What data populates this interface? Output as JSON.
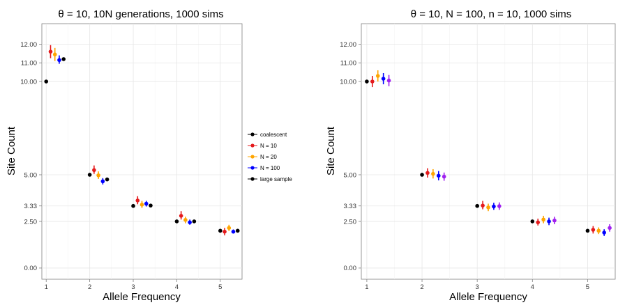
{
  "legend": {
    "entries": [
      {
        "label": "coalescent",
        "color": "#000000"
      },
      {
        "label": "N = 10",
        "color": "#e41a1c"
      },
      {
        "label": "N = 20",
        "color": "#ffa500"
      },
      {
        "label": "N = 100",
        "color": "#0000ff"
      },
      {
        "label": "large sample",
        "color": "#000000"
      }
    ]
  },
  "chart_data": [
    {
      "type": "scatter",
      "title": "θ = 10, 10N generations, 1000 sims",
      "xlabel": "Allele Frequency",
      "ylabel": "Site Count",
      "xlim": [
        0.9,
        5.5
      ],
      "ylim": [
        -0.6,
        13.1
      ],
      "x_ticks": [
        1,
        2,
        3,
        4,
        5
      ],
      "y_ticks": [
        0,
        2.5,
        3.33,
        5,
        10,
        11,
        12
      ],
      "y_tick_labels": [
        "0.00",
        "2.50",
        "3.33",
        "5.00",
        "10.00",
        "11.00",
        "12.00"
      ],
      "grid": true,
      "series": [
        {
          "name": "coalescent",
          "color": "#000000",
          "offset": 0,
          "points": [
            {
              "x": 1,
              "y": 10.0,
              "lo": 10.0,
              "hi": 10.0
            },
            {
              "x": 2,
              "y": 5.0,
              "lo": 5.0,
              "hi": 5.0
            },
            {
              "x": 3,
              "y": 3.33,
              "lo": 3.33,
              "hi": 3.33
            },
            {
              "x": 4,
              "y": 2.5,
              "lo": 2.5,
              "hi": 2.5
            },
            {
              "x": 5,
              "y": 2.0,
              "lo": 2.0,
              "hi": 2.0
            }
          ]
        },
        {
          "name": "N = 10",
          "color": "#e41a1c",
          "offset": 0.1,
          "points": [
            {
              "x": 1,
              "y": 11.6,
              "lo": 11.25,
              "hi": 11.95
            },
            {
              "x": 2,
              "y": 5.25,
              "lo": 5.05,
              "hi": 5.5
            },
            {
              "x": 3,
              "y": 3.62,
              "lo": 3.42,
              "hi": 3.85
            },
            {
              "x": 4,
              "y": 2.8,
              "lo": 2.6,
              "hi": 3.05
            },
            {
              "x": 5,
              "y": 1.95,
              "lo": 1.75,
              "hi": 2.15
            }
          ]
        },
        {
          "name": "N = 20",
          "color": "#ffa500",
          "offset": 0.2,
          "points": [
            {
              "x": 1,
              "y": 11.45,
              "lo": 11.1,
              "hi": 11.8
            },
            {
              "x": 2,
              "y": 4.97,
              "lo": 4.78,
              "hi": 5.18
            },
            {
              "x": 3,
              "y": 3.4,
              "lo": 3.22,
              "hi": 3.6
            },
            {
              "x": 4,
              "y": 2.58,
              "lo": 2.4,
              "hi": 2.75
            },
            {
              "x": 5,
              "y": 2.15,
              "lo": 1.98,
              "hi": 2.32
            }
          ]
        },
        {
          "name": "N = 100",
          "color": "#0000ff",
          "offset": 0.3,
          "points": [
            {
              "x": 1,
              "y": 11.15,
              "lo": 10.95,
              "hi": 11.4
            },
            {
              "x": 2,
              "y": 4.65,
              "lo": 4.48,
              "hi": 4.82
            },
            {
              "x": 3,
              "y": 3.45,
              "lo": 3.3,
              "hi": 3.6
            },
            {
              "x": 4,
              "y": 2.45,
              "lo": 2.32,
              "hi": 2.6
            },
            {
              "x": 5,
              "y": 1.95,
              "lo": 1.85,
              "hi": 2.07
            }
          ]
        },
        {
          "name": "large sample",
          "color": "#000000",
          "offset": 0.4,
          "points": [
            {
              "x": 1,
              "y": 11.2,
              "lo": 11.2,
              "hi": 11.2
            },
            {
              "x": 2,
              "y": 4.75,
              "lo": 4.75,
              "hi": 4.75
            },
            {
              "x": 3,
              "y": 3.35,
              "lo": 3.35,
              "hi": 3.35
            },
            {
              "x": 4,
              "y": 2.5,
              "lo": 2.5,
              "hi": 2.5
            },
            {
              "x": 5,
              "y": 2.0,
              "lo": 2.0,
              "hi": 2.0
            }
          ]
        }
      ]
    },
    {
      "type": "scatter",
      "title": "θ = 10, N = 100, n = 10, 1000 sims",
      "xlabel": "Allele Frequency",
      "ylabel": "Site Count",
      "xlim": [
        0.9,
        5.5
      ],
      "ylim": [
        -0.6,
        13.1
      ],
      "x_ticks": [
        1,
        2,
        3,
        4,
        5
      ],
      "y_ticks": [
        0,
        2.5,
        3.33,
        5,
        10,
        11,
        12
      ],
      "y_tick_labels": [
        "0.00",
        "2.50",
        "3.33",
        "5.00",
        "10.00",
        "11.00",
        "12.00"
      ],
      "grid": true,
      "series": [
        {
          "color": "#000000",
          "offset": 0,
          "points": [
            {
              "x": 1,
              "y": 10.0,
              "lo": 10.0,
              "hi": 10.0
            },
            {
              "x": 2,
              "y": 5.0,
              "lo": 5.0,
              "hi": 5.0
            },
            {
              "x": 3,
              "y": 3.33,
              "lo": 3.33,
              "hi": 3.33
            },
            {
              "x": 4,
              "y": 2.5,
              "lo": 2.5,
              "hi": 2.5
            },
            {
              "x": 5,
              "y": 2.0,
              "lo": 2.0,
              "hi": 2.0
            }
          ]
        },
        {
          "color": "#e41a1c",
          "offset": 0.1,
          "points": [
            {
              "x": 1,
              "y": 10.0,
              "lo": 9.7,
              "hi": 10.3
            },
            {
              "x": 2,
              "y": 5.1,
              "lo": 4.85,
              "hi": 5.35
            },
            {
              "x": 3,
              "y": 3.35,
              "lo": 3.15,
              "hi": 3.6
            },
            {
              "x": 4,
              "y": 2.45,
              "lo": 2.28,
              "hi": 2.65
            },
            {
              "x": 5,
              "y": 2.05,
              "lo": 1.85,
              "hi": 2.25
            }
          ]
        },
        {
          "color": "#ffa500",
          "offset": 0.2,
          "points": [
            {
              "x": 1,
              "y": 10.3,
              "lo": 10.0,
              "hi": 10.6
            },
            {
              "x": 2,
              "y": 5.05,
              "lo": 4.8,
              "hi": 5.3
            },
            {
              "x": 3,
              "y": 3.25,
              "lo": 3.05,
              "hi": 3.45
            },
            {
              "x": 4,
              "y": 2.6,
              "lo": 2.4,
              "hi": 2.8
            },
            {
              "x": 5,
              "y": 2.0,
              "lo": 1.82,
              "hi": 2.18
            }
          ]
        },
        {
          "color": "#0000ff",
          "offset": 0.3,
          "points": [
            {
              "x": 1,
              "y": 10.15,
              "lo": 9.85,
              "hi": 10.45
            },
            {
              "x": 2,
              "y": 4.95,
              "lo": 4.7,
              "hi": 5.2
            },
            {
              "x": 3,
              "y": 3.3,
              "lo": 3.12,
              "hi": 3.5
            },
            {
              "x": 4,
              "y": 2.5,
              "lo": 2.3,
              "hi": 2.7
            },
            {
              "x": 5,
              "y": 1.9,
              "lo": 1.72,
              "hi": 2.08
            }
          ]
        },
        {
          "color": "#a020f0",
          "offset": 0.4,
          "points": [
            {
              "x": 1,
              "y": 10.05,
              "lo": 9.75,
              "hi": 10.35
            },
            {
              "x": 2,
              "y": 4.9,
              "lo": 4.68,
              "hi": 5.12
            },
            {
              "x": 3,
              "y": 3.32,
              "lo": 3.12,
              "hi": 3.52
            },
            {
              "x": 4,
              "y": 2.55,
              "lo": 2.35,
              "hi": 2.75
            },
            {
              "x": 5,
              "y": 2.15,
              "lo": 1.95,
              "hi": 2.35
            }
          ]
        }
      ]
    }
  ]
}
